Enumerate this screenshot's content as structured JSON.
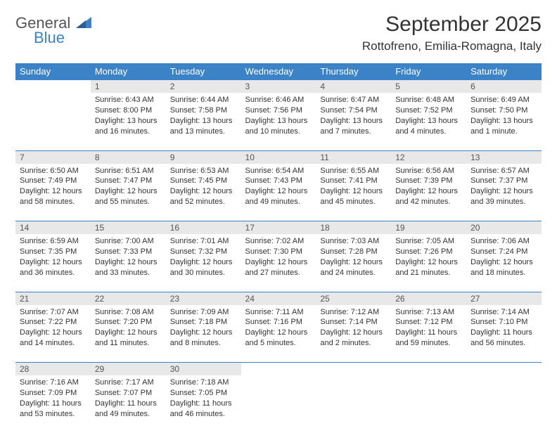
{
  "brand": {
    "name_top": "General",
    "name_bottom": "Blue",
    "color_gray": "#6a6a6a",
    "color_blue": "#3b82c7"
  },
  "title": "September 2025",
  "location": "Rottofreno, Emilia-Romagna, Italy",
  "theme": {
    "header_bg": "#3b82c7",
    "header_fg": "#ffffff",
    "daynum_bg": "#e8e8e8",
    "daynum_fg": "#555555",
    "divider": "#3b82c7",
    "body_fg": "#333333",
    "font_family": "Arial",
    "th_fontsize": 13,
    "daynum_fontsize": 12,
    "detail_fontsize": 11,
    "title_fontsize": 30,
    "location_fontsize": 17
  },
  "day_headers": [
    "Sunday",
    "Monday",
    "Tuesday",
    "Wednesday",
    "Thursday",
    "Friday",
    "Saturday"
  ],
  "weeks": [
    {
      "nums": [
        "",
        "1",
        "2",
        "3",
        "4",
        "5",
        "6"
      ],
      "details": [
        null,
        {
          "sunrise": "Sunrise: 6:43 AM",
          "sunset": "Sunset: 8:00 PM",
          "daylight": "Daylight: 13 hours and 16 minutes."
        },
        {
          "sunrise": "Sunrise: 6:44 AM",
          "sunset": "Sunset: 7:58 PM",
          "daylight": "Daylight: 13 hours and 13 minutes."
        },
        {
          "sunrise": "Sunrise: 6:46 AM",
          "sunset": "Sunset: 7:56 PM",
          "daylight": "Daylight: 13 hours and 10 minutes."
        },
        {
          "sunrise": "Sunrise: 6:47 AM",
          "sunset": "Sunset: 7:54 PM",
          "daylight": "Daylight: 13 hours and 7 minutes."
        },
        {
          "sunrise": "Sunrise: 6:48 AM",
          "sunset": "Sunset: 7:52 PM",
          "daylight": "Daylight: 13 hours and 4 minutes."
        },
        {
          "sunrise": "Sunrise: 6:49 AM",
          "sunset": "Sunset: 7:50 PM",
          "daylight": "Daylight: 13 hours and 1 minute."
        }
      ]
    },
    {
      "nums": [
        "7",
        "8",
        "9",
        "10",
        "11",
        "12",
        "13"
      ],
      "details": [
        {
          "sunrise": "Sunrise: 6:50 AM",
          "sunset": "Sunset: 7:49 PM",
          "daylight": "Daylight: 12 hours and 58 minutes."
        },
        {
          "sunrise": "Sunrise: 6:51 AM",
          "sunset": "Sunset: 7:47 PM",
          "daylight": "Daylight: 12 hours and 55 minutes."
        },
        {
          "sunrise": "Sunrise: 6:53 AM",
          "sunset": "Sunset: 7:45 PM",
          "daylight": "Daylight: 12 hours and 52 minutes."
        },
        {
          "sunrise": "Sunrise: 6:54 AM",
          "sunset": "Sunset: 7:43 PM",
          "daylight": "Daylight: 12 hours and 49 minutes."
        },
        {
          "sunrise": "Sunrise: 6:55 AM",
          "sunset": "Sunset: 7:41 PM",
          "daylight": "Daylight: 12 hours and 45 minutes."
        },
        {
          "sunrise": "Sunrise: 6:56 AM",
          "sunset": "Sunset: 7:39 PM",
          "daylight": "Daylight: 12 hours and 42 minutes."
        },
        {
          "sunrise": "Sunrise: 6:57 AM",
          "sunset": "Sunset: 7:37 PM",
          "daylight": "Daylight: 12 hours and 39 minutes."
        }
      ]
    },
    {
      "nums": [
        "14",
        "15",
        "16",
        "17",
        "18",
        "19",
        "20"
      ],
      "details": [
        {
          "sunrise": "Sunrise: 6:59 AM",
          "sunset": "Sunset: 7:35 PM",
          "daylight": "Daylight: 12 hours and 36 minutes."
        },
        {
          "sunrise": "Sunrise: 7:00 AM",
          "sunset": "Sunset: 7:33 PM",
          "daylight": "Daylight: 12 hours and 33 minutes."
        },
        {
          "sunrise": "Sunrise: 7:01 AM",
          "sunset": "Sunset: 7:32 PM",
          "daylight": "Daylight: 12 hours and 30 minutes."
        },
        {
          "sunrise": "Sunrise: 7:02 AM",
          "sunset": "Sunset: 7:30 PM",
          "daylight": "Daylight: 12 hours and 27 minutes."
        },
        {
          "sunrise": "Sunrise: 7:03 AM",
          "sunset": "Sunset: 7:28 PM",
          "daylight": "Daylight: 12 hours and 24 minutes."
        },
        {
          "sunrise": "Sunrise: 7:05 AM",
          "sunset": "Sunset: 7:26 PM",
          "daylight": "Daylight: 12 hours and 21 minutes."
        },
        {
          "sunrise": "Sunrise: 7:06 AM",
          "sunset": "Sunset: 7:24 PM",
          "daylight": "Daylight: 12 hours and 18 minutes."
        }
      ]
    },
    {
      "nums": [
        "21",
        "22",
        "23",
        "24",
        "25",
        "26",
        "27"
      ],
      "details": [
        {
          "sunrise": "Sunrise: 7:07 AM",
          "sunset": "Sunset: 7:22 PM",
          "daylight": "Daylight: 12 hours and 14 minutes."
        },
        {
          "sunrise": "Sunrise: 7:08 AM",
          "sunset": "Sunset: 7:20 PM",
          "daylight": "Daylight: 12 hours and 11 minutes."
        },
        {
          "sunrise": "Sunrise: 7:09 AM",
          "sunset": "Sunset: 7:18 PM",
          "daylight": "Daylight: 12 hours and 8 minutes."
        },
        {
          "sunrise": "Sunrise: 7:11 AM",
          "sunset": "Sunset: 7:16 PM",
          "daylight": "Daylight: 12 hours and 5 minutes."
        },
        {
          "sunrise": "Sunrise: 7:12 AM",
          "sunset": "Sunset: 7:14 PM",
          "daylight": "Daylight: 12 hours and 2 minutes."
        },
        {
          "sunrise": "Sunrise: 7:13 AM",
          "sunset": "Sunset: 7:12 PM",
          "daylight": "Daylight: 11 hours and 59 minutes."
        },
        {
          "sunrise": "Sunrise: 7:14 AM",
          "sunset": "Sunset: 7:10 PM",
          "daylight": "Daylight: 11 hours and 56 minutes."
        }
      ]
    },
    {
      "nums": [
        "28",
        "29",
        "30",
        "",
        "",
        "",
        ""
      ],
      "details": [
        {
          "sunrise": "Sunrise: 7:16 AM",
          "sunset": "Sunset: 7:09 PM",
          "daylight": "Daylight: 11 hours and 53 minutes."
        },
        {
          "sunrise": "Sunrise: 7:17 AM",
          "sunset": "Sunset: 7:07 PM",
          "daylight": "Daylight: 11 hours and 49 minutes."
        },
        {
          "sunrise": "Sunrise: 7:18 AM",
          "sunset": "Sunset: 7:05 PM",
          "daylight": "Daylight: 11 hours and 46 minutes."
        },
        null,
        null,
        null,
        null
      ]
    }
  ]
}
